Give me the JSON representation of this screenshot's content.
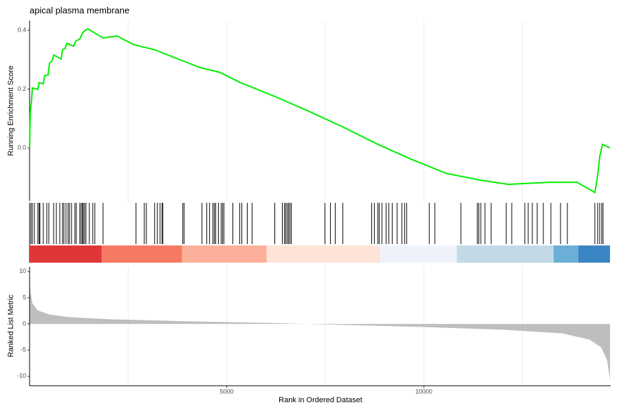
{
  "chart_data": {
    "type": "gsea",
    "title": "apical plasma membrane",
    "xlabel": "Rank in Ordered Dataset",
    "xlim": [
      0,
      14740
    ],
    "xticks": [
      5000,
      10000
    ],
    "xgrid": [
      2500,
      5000,
      7500,
      10000,
      12500
    ],
    "es": {
      "ylabel": "Running Enrichment Score",
      "color": "#00ee00",
      "ylim": [
        -0.18,
        0.433
      ],
      "yticks": [
        {
          "value": 0,
          "label": "0.0"
        },
        0.2,
        0.4
      ],
      "x": [
        0,
        17,
        52,
        70,
        209,
        244,
        348,
        383,
        470,
        505,
        575,
        610,
        801,
        836,
        905,
        941,
        1115,
        1168,
        1272,
        1341,
        1411,
        1481,
        1864,
        2213,
        2648,
        3171,
        3868,
        4303,
        4826,
        5348,
        6220,
        7091,
        7962,
        8833,
        9704,
        10575,
        11446,
        12143,
        13188,
        13885,
        14338,
        14408,
        14460,
        14530,
        14721
      ],
      "values": [
        0,
        0.117,
        0.164,
        0.204,
        0.199,
        0.222,
        0.218,
        0.246,
        0.248,
        0.288,
        0.297,
        0.316,
        0.302,
        0.334,
        0.339,
        0.356,
        0.346,
        0.363,
        0.37,
        0.391,
        0.4,
        0.405,
        0.374,
        0.381,
        0.351,
        0.334,
        0.297,
        0.274,
        0.257,
        0.222,
        0.175,
        0.124,
        0.07,
        0.012,
        -0.04,
        -0.087,
        -0.11,
        -0.124,
        -0.117,
        -0.117,
        -0.152,
        -0.094,
        -0.03,
        0.012,
        0
      ]
    },
    "hits": [
      0,
      35,
      70,
      122,
      209,
      244,
      261,
      348,
      436,
      488,
      610,
      679,
      767,
      836,
      871,
      923,
      976,
      1010,
      1063,
      1150,
      1185,
      1272,
      1307,
      1341,
      1359,
      1394,
      1429,
      1516,
      1603,
      1655,
      1864,
      2700,
      2909,
      2961,
      3171,
      3240,
      3310,
      3362,
      3380,
      3885,
      3920,
      4373,
      4494,
      4564,
      4651,
      4686,
      4721,
      4790,
      4860,
      4895,
      4930,
      5156,
      5331,
      5383,
      5522,
      5644,
      6219,
      6411,
      6463,
      6498,
      6533,
      6568,
      6602,
      6637,
      7491,
      7630,
      7752,
      7944,
      8675,
      8745,
      8832,
      8867,
      8936,
      9041,
      9110,
      9198,
      9320,
      9442,
      9511,
      9563,
      10138,
      10277,
      10939,
      11357,
      11392,
      11444,
      11549,
      11706,
      12089,
      12229,
      12560,
      12647,
      12751,
      12874,
      13030,
      13222,
      13466,
      13640,
      14337,
      14407,
      14459,
      14511,
      14546
    ],
    "color_band": {
      "breaks": [
        0,
        1829,
        3868,
        6010,
        8885,
        10835,
        13292,
        13919,
        14721
      ],
      "colors": [
        "#e0363a",
        "#f67a63",
        "#fcb09a",
        "#fee3d8",
        "#eef3fb",
        "#c2d9e8",
        "#6baed6",
        "#3a85c4"
      ]
    },
    "metric": {
      "ylabel": "Ranked List Metric",
      "color": "#bebebe",
      "ylim": [
        -11.8,
        10.9
      ],
      "yticks": [
        -10,
        -5,
        0,
        5,
        10
      ],
      "x": [
        0,
        17,
        70,
        200,
        500,
        1000,
        2000,
        4000,
        6000,
        7000,
        8000,
        10000,
        12000,
        13500,
        14200,
        14500,
        14650,
        14721
      ],
      "values": [
        9.3,
        6.5,
        4,
        2.6,
        1.8,
        1.3,
        0.9,
        0.5,
        0.2,
        0,
        -0.2,
        -0.6,
        -1.1,
        -1.8,
        -3,
        -4.5,
        -7,
        -10.8
      ]
    }
  }
}
